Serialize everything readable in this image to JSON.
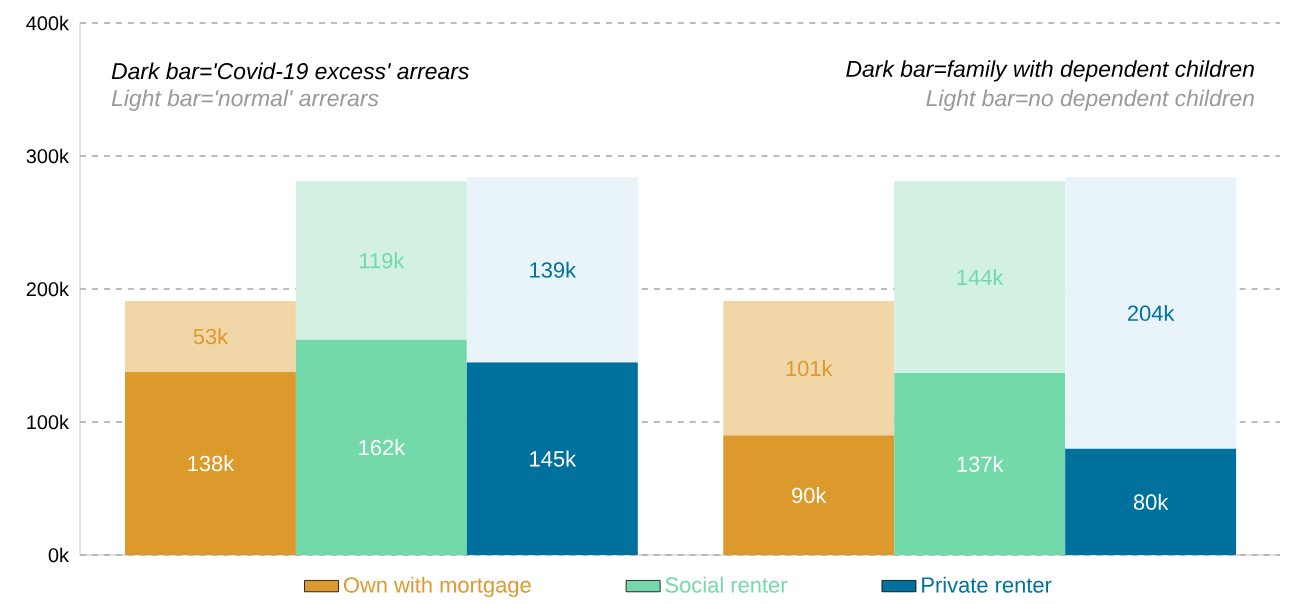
{
  "chart_data": {
    "type": "bar",
    "stacked": true,
    "categories": [
      null,
      null,
      null,
      null,
      null,
      null
    ],
    "series": [
      {
        "name": "Own with mortgage",
        "color": "#dc9a2c",
        "values": [
          138,
          null,
          null,
          90,
          null,
          null
        ],
        "value_labels": [
          "138k",
          null,
          null,
          "90k",
          null,
          null
        ]
      },
      {
        "color": "#f1d6a8",
        "values": [
          53,
          null,
          null,
          101,
          null,
          null
        ],
        "value_labels": [
          "53k",
          null,
          null,
          "101k",
          null,
          null
        ]
      },
      {
        "name": "Social renter",
        "color": "#73d9aa",
        "values": [
          null,
          162,
          null,
          null,
          137,
          null
        ],
        "value_labels": [
          null,
          "162k",
          null,
          null,
          "137k",
          null
        ]
      },
      {
        "color": "#d2f1e3",
        "values": [
          null,
          119,
          null,
          null,
          144,
          null
        ],
        "value_labels": [
          null,
          "119k",
          null,
          null,
          "144k",
          null
        ]
      },
      {
        "name": "Private renter",
        "color": "#00719c",
        "values": [
          null,
          null,
          145,
          null,
          null,
          80
        ],
        "value_labels": [
          null,
          null,
          "145k",
          null,
          null,
          "80k"
        ]
      },
      {
        "color": "#e8f4f9",
        "values": [
          null,
          null,
          139,
          null,
          null,
          204
        ],
        "value_labels": [
          null,
          null,
          "139k",
          null,
          null,
          "204k"
        ]
      }
    ],
    "ylim": [
      0,
      400
    ],
    "yticks": [
      {
        "value": 0,
        "label": "0k"
      },
      {
        "value": 100,
        "label": "100k"
      },
      {
        "value": 200,
        "label": "200k"
      },
      {
        "value": 300,
        "label": "300k"
      },
      {
        "value": 400,
        "label": "400k"
      }
    ],
    "grid": "y",
    "legend": "bottom",
    "annotations": [
      "Dark bar='Covid-19 excess' arrears",
      "Light bar='normal' arrerars",
      "Dark bar=family with dependent children",
      "Light bar=no dependent children"
    ]
  }
}
